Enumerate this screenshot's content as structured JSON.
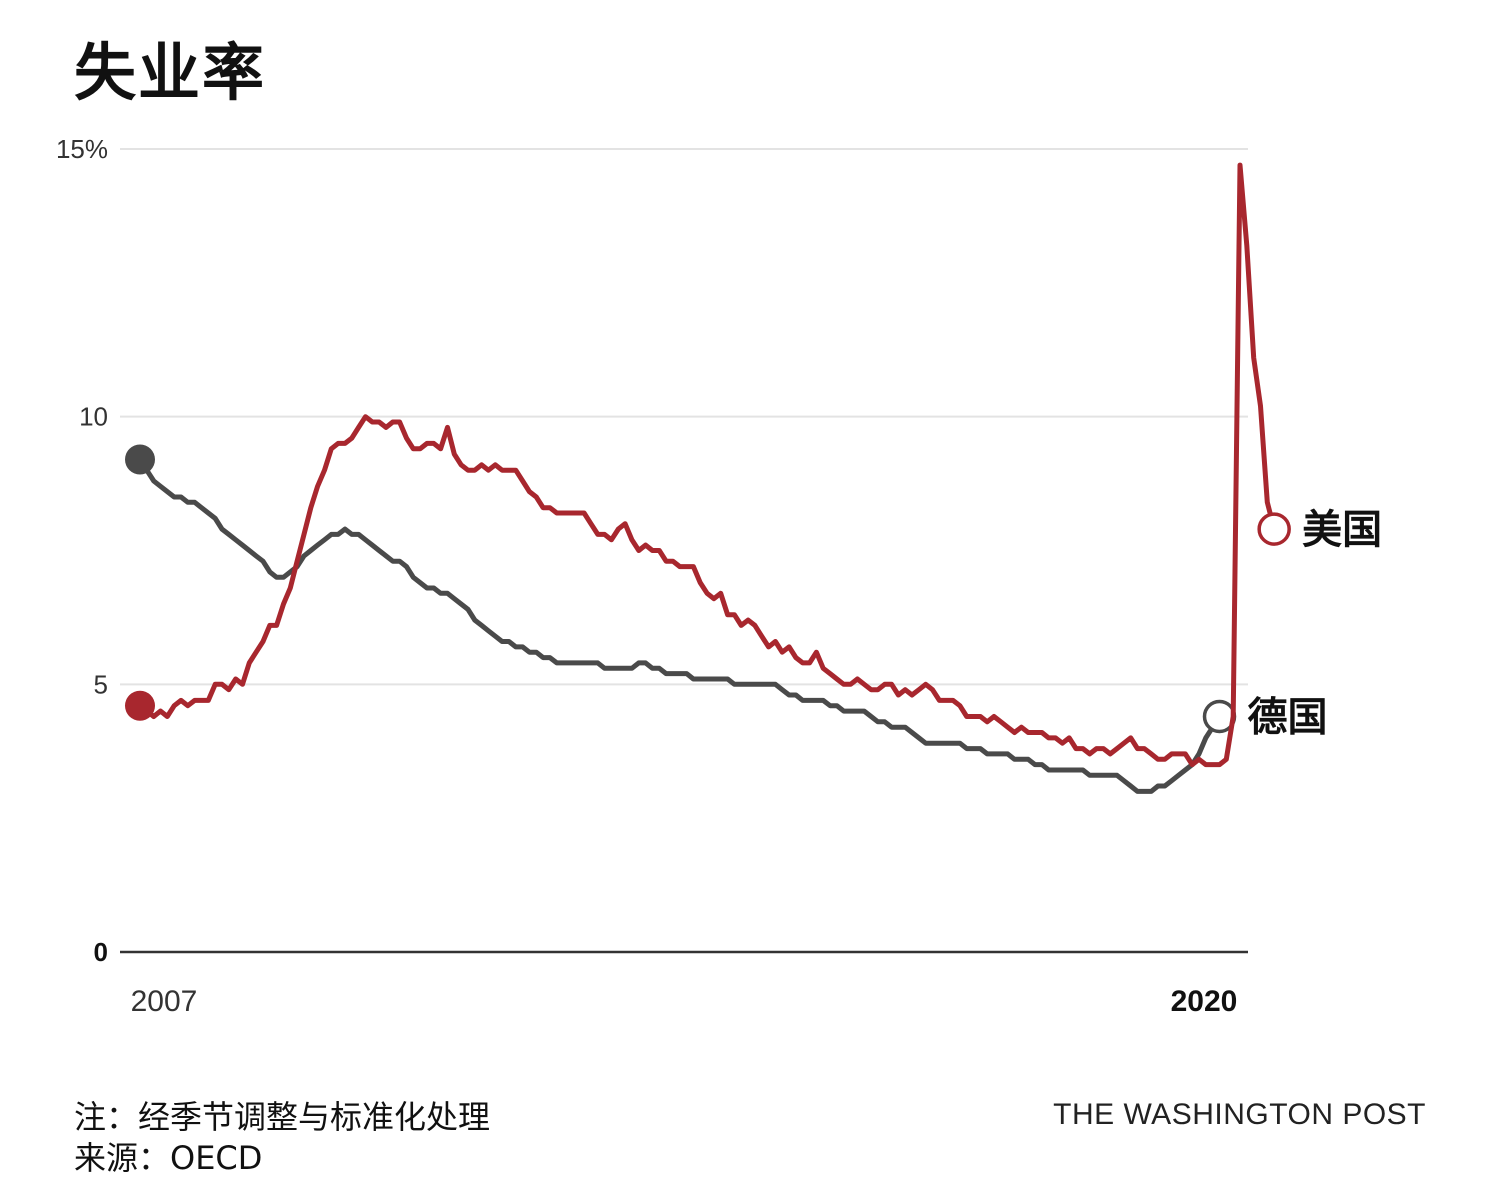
{
  "title": "失业率",
  "note": "注：经季节调整与标准化处理",
  "source": "来源：OECD",
  "credit": "THE WASHINGTON POST",
  "colors": {
    "us": "#a8272e",
    "germany": "#4a4a4a",
    "grid": "#e3e3e3",
    "baseline": "#333333"
  },
  "chart_data": {
    "type": "line",
    "title": "失业率",
    "x_start": "2007-01",
    "x_end": "2020-06",
    "xticks": [
      "2007",
      "2020"
    ],
    "yticks": [
      "0",
      "5",
      "10",
      "15%"
    ],
    "ylim": [
      0,
      15
    ],
    "grid": true,
    "series": [
      {
        "name": "美国",
        "color": "#a8272e",
        "start": "2007-01",
        "frequency": "monthly",
        "values": [
          4.6,
          4.5,
          4.4,
          4.5,
          4.4,
          4.6,
          4.7,
          4.6,
          4.7,
          4.7,
          4.7,
          5.0,
          5.0,
          4.9,
          5.1,
          5.0,
          5.4,
          5.6,
          5.8,
          6.1,
          6.1,
          6.5,
          6.8,
          7.3,
          7.8,
          8.3,
          8.7,
          9.0,
          9.4,
          9.5,
          9.5,
          9.6,
          9.8,
          10.0,
          9.9,
          9.9,
          9.8,
          9.9,
          9.9,
          9.6,
          9.4,
          9.4,
          9.5,
          9.5,
          9.4,
          9.8,
          9.3,
          9.1,
          9.0,
          9.0,
          9.1,
          9.0,
          9.1,
          9.0,
          9.0,
          9.0,
          8.8,
          8.6,
          8.5,
          8.3,
          8.3,
          8.2,
          8.2,
          8.2,
          8.2,
          8.2,
          8.0,
          7.8,
          7.8,
          7.7,
          7.9,
          8.0,
          7.7,
          7.5,
          7.6,
          7.5,
          7.5,
          7.3,
          7.3,
          7.2,
          7.2,
          7.2,
          6.9,
          6.7,
          6.6,
          6.7,
          6.3,
          6.3,
          6.1,
          6.2,
          6.1,
          5.9,
          5.7,
          5.8,
          5.6,
          5.7,
          5.5,
          5.4,
          5.4,
          5.6,
          5.3,
          5.2,
          5.1,
          5.0,
          5.0,
          5.1,
          5.0,
          4.9,
          4.9,
          5.0,
          5.0,
          4.8,
          4.9,
          4.8,
          4.9,
          5.0,
          4.9,
          4.7,
          4.7,
          4.7,
          4.6,
          4.4,
          4.4,
          4.4,
          4.3,
          4.4,
          4.3,
          4.2,
          4.1,
          4.2,
          4.1,
          4.1,
          4.1,
          4.0,
          4.0,
          3.9,
          4.0,
          3.8,
          3.8,
          3.7,
          3.8,
          3.8,
          3.7,
          3.8,
          3.9,
          4.0,
          3.8,
          3.8,
          3.7,
          3.6,
          3.6,
          3.7,
          3.7,
          3.7,
          3.5,
          3.6,
          3.5,
          3.5,
          3.5,
          3.6,
          4.4,
          14.7,
          13.2,
          11.1,
          10.2,
          8.4,
          7.9
        ]
      },
      {
        "name": "德国",
        "color": "#4a4a4a",
        "start": "2007-01",
        "frequency": "monthly",
        "values": [
          9.2,
          9.0,
          8.8,
          8.7,
          8.6,
          8.5,
          8.5,
          8.4,
          8.4,
          8.3,
          8.2,
          8.1,
          7.9,
          7.8,
          7.7,
          7.6,
          7.5,
          7.4,
          7.3,
          7.1,
          7.0,
          7.0,
          7.1,
          7.2,
          7.4,
          7.5,
          7.6,
          7.7,
          7.8,
          7.8,
          7.9,
          7.8,
          7.8,
          7.7,
          7.6,
          7.5,
          7.4,
          7.3,
          7.3,
          7.2,
          7.0,
          6.9,
          6.8,
          6.8,
          6.7,
          6.7,
          6.6,
          6.5,
          6.4,
          6.2,
          6.1,
          6.0,
          5.9,
          5.8,
          5.8,
          5.7,
          5.7,
          5.6,
          5.6,
          5.5,
          5.5,
          5.4,
          5.4,
          5.4,
          5.4,
          5.4,
          5.4,
          5.4,
          5.3,
          5.3,
          5.3,
          5.3,
          5.3,
          5.4,
          5.4,
          5.3,
          5.3,
          5.2,
          5.2,
          5.2,
          5.2,
          5.1,
          5.1,
          5.1,
          5.1,
          5.1,
          5.1,
          5.0,
          5.0,
          5.0,
          5.0,
          5.0,
          5.0,
          5.0,
          4.9,
          4.8,
          4.8,
          4.7,
          4.7,
          4.7,
          4.7,
          4.6,
          4.6,
          4.5,
          4.5,
          4.5,
          4.5,
          4.4,
          4.3,
          4.3,
          4.2,
          4.2,
          4.2,
          4.1,
          4.0,
          3.9,
          3.9,
          3.9,
          3.9,
          3.9,
          3.9,
          3.8,
          3.8,
          3.8,
          3.7,
          3.7,
          3.7,
          3.7,
          3.6,
          3.6,
          3.6,
          3.5,
          3.5,
          3.4,
          3.4,
          3.4,
          3.4,
          3.4,
          3.4,
          3.3,
          3.3,
          3.3,
          3.3,
          3.3,
          3.2,
          3.1,
          3.0,
          3.0,
          3.0,
          3.1,
          3.1,
          3.2,
          3.3,
          3.4,
          3.5,
          3.7,
          4.0,
          4.2,
          4.4
        ]
      }
    ]
  }
}
